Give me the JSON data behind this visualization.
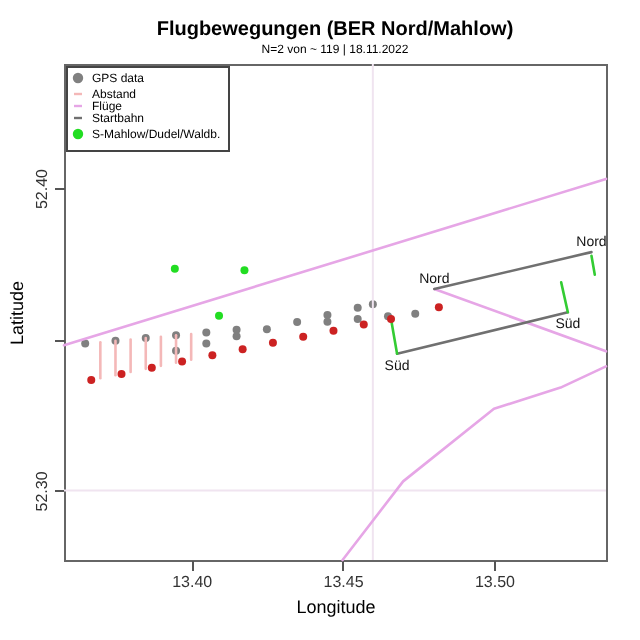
{
  "chart_data": {
    "type": "scatter",
    "title": "Flugbewegungen (BER Nord/Mahlow)",
    "subtitle": "N=2 von ~ 119 | 18.11.2022",
    "xlabel": "Longitude",
    "ylabel": "Latitude",
    "xlim": [
      13.358,
      13.537
    ],
    "ylim": [
      52.277,
      52.441
    ],
    "xticks": [
      {
        "value": 13.4,
        "label": "13.40"
      },
      13.45,
      {
        "value": 13.5,
        "label": "13.50"
      }
    ],
    "yticks": [
      {
        "value": 52.3,
        "label": "52.30"
      },
      {
        "value": 52.35,
        "label": null
      },
      {
        "value": 52.4,
        "label": "52.40"
      }
    ],
    "grid": false,
    "legend": "top left",
    "ref_lines": [
      {
        "axis": "x",
        "value": 13.46,
        "color": "#f0e4f0"
      },
      {
        "axis": "y",
        "value": 52.3,
        "color": "#f0e4f0"
      }
    ],
    "annotations": [
      {
        "text": "Nord",
        "x": 13.4803,
        "y": 52.3666
      },
      {
        "text": "Nord",
        "x": 13.5322,
        "y": 52.3788
      },
      {
        "text": "Süd",
        "x": 13.468,
        "y": 52.3452
      },
      {
        "text": "Süd",
        "x": 13.5244,
        "y": 52.3589
      }
    ],
    "series": [
      {
        "name": "GPS data",
        "color": "#808080",
        "x": [
          13.365,
          13.375,
          13.385,
          13.395,
          13.405,
          13.415,
          13.445,
          13.455,
          13.465,
          13.474,
          13.395,
          13.405,
          13.415,
          13.425,
          13.435,
          13.445,
          13.455,
          13.46
        ],
        "values": [
          52.3486,
          52.3495,
          52.3504,
          52.3513,
          52.3522,
          52.3531,
          52.3558,
          52.3567,
          52.3576,
          52.3584,
          52.3462,
          52.3486,
          52.351,
          52.3533,
          52.3557,
          52.358,
          52.3604,
          52.3616
        ]
      },
      {
        "type": "line",
        "name": "Abstand",
        "color": "#f4b8b8",
        "x": [
          13.37,
          13.37,
          null,
          13.375,
          13.375,
          null,
          13.38,
          13.38,
          null,
          13.385,
          13.385,
          null,
          13.39,
          13.39,
          null,
          13.395,
          13.395,
          null,
          13.4,
          13.4
        ],
        "values": [
          52.349,
          52.3371,
          null,
          52.3495,
          52.3381,
          null,
          52.3499,
          52.3392,
          null,
          52.3504,
          52.3402,
          null,
          52.3508,
          52.3412,
          null,
          52.3513,
          52.3422,
          null,
          52.3517,
          52.3432
        ]
      },
      {
        "type": "line",
        "name": "Flüge",
        "color": "#e6a6e6",
        "x": [
          13.358,
          13.537,
          null,
          13.45,
          13.47,
          13.5,
          13.522,
          13.537,
          null,
          13.4803,
          13.537
        ],
        "values": [
          52.348,
          52.403,
          null,
          52.277,
          52.303,
          52.327,
          52.334,
          52.341,
          null,
          52.3666,
          52.346
        ]
      },
      {
        "type": "line",
        "name": "Startbahn",
        "color": "#707070",
        "x": [
          13.4803,
          13.5322,
          null,
          13.468,
          13.5244
        ],
        "values": [
          52.3666,
          52.3788,
          null,
          52.3452,
          52.3589
        ]
      },
      {
        "name": "S-Mahlow/Dudel/Waldb.",
        "color": "#22dd22",
        "x": [
          13.3946,
          13.4176,
          13.4092
        ],
        "values": [
          52.3733,
          52.3728,
          52.3578
        ]
      },
      {
        "type": "line",
        "color": "#33cc33",
        "x": [
          13.466,
          13.468,
          null,
          13.5222,
          13.5244,
          null,
          13.5322,
          13.5333
        ],
        "values": [
          52.3567,
          52.3452,
          null,
          52.3688,
          52.3589,
          null,
          52.3776,
          52.3713
        ]
      },
      {
        "color": "#cc2222",
        "x": [
          13.367,
          13.377,
          13.387,
          13.397,
          13.407,
          13.417,
          13.427,
          13.437,
          13.447,
          13.457,
          13.466,
          13.4818
        ],
        "values": [
          52.3365,
          52.3385,
          52.3406,
          52.3426,
          52.3447,
          52.3467,
          52.3488,
          52.3508,
          52.3528,
          52.3549,
          52.3567,
          52.3606
        ]
      }
    ]
  }
}
